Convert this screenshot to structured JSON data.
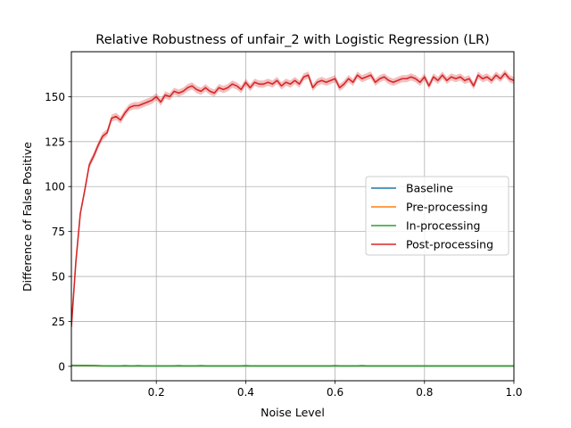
{
  "chart_data": {
    "type": "line",
    "title": "Relative Robustness of unfair_2 with Logistic Regression (LR)",
    "xlabel": "Noise Level",
    "ylabel": "Difference of False Positive",
    "xlim": [
      0.01,
      1.0
    ],
    "ylim": [
      -8,
      175
    ],
    "xticks": [
      0.2,
      0.4,
      0.6,
      0.8,
      1.0
    ],
    "xtick_labels": [
      "0.2",
      "0.4",
      "0.6",
      "0.8",
      "1.0"
    ],
    "yticks": [
      0,
      25,
      50,
      75,
      100,
      125,
      150
    ],
    "ytick_labels": [
      "0",
      "25",
      "50",
      "75",
      "100",
      "125",
      "150"
    ],
    "grid": true,
    "legend_position": "center-right",
    "x": [
      0.01,
      0.02,
      0.03,
      0.04,
      0.05,
      0.06,
      0.07,
      0.08,
      0.09,
      0.1,
      0.11,
      0.12,
      0.13,
      0.14,
      0.15,
      0.16,
      0.17,
      0.18,
      0.19,
      0.2,
      0.21,
      0.22,
      0.23,
      0.24,
      0.25,
      0.26,
      0.27,
      0.28,
      0.29,
      0.3,
      0.31,
      0.32,
      0.33,
      0.34,
      0.35,
      0.36,
      0.37,
      0.38,
      0.39,
      0.4,
      0.41,
      0.42,
      0.43,
      0.44,
      0.45,
      0.46,
      0.47,
      0.48,
      0.49,
      0.5,
      0.51,
      0.52,
      0.53,
      0.54,
      0.55,
      0.56,
      0.57,
      0.58,
      0.59,
      0.6,
      0.61,
      0.62,
      0.63,
      0.64,
      0.65,
      0.66,
      0.67,
      0.68,
      0.69,
      0.7,
      0.71,
      0.72,
      0.73,
      0.74,
      0.75,
      0.76,
      0.77,
      0.78,
      0.79,
      0.8,
      0.81,
      0.82,
      0.83,
      0.84,
      0.85,
      0.86,
      0.87,
      0.88,
      0.89,
      0.9,
      0.91,
      0.92,
      0.93,
      0.94,
      0.95,
      0.96,
      0.97,
      0.98,
      0.99,
      1.0
    ],
    "series": [
      {
        "name": "Baseline",
        "color": "#1f77b4",
        "values": [
          0.5,
          0.5,
          0.5,
          0.4,
          0.4,
          0.4,
          0.3,
          0.3,
          0.3,
          0.2,
          0.2,
          0.2,
          0.2,
          0.2,
          0.2,
          0.2,
          0.2,
          0.2,
          0.2,
          0.2,
          0.2,
          0.2,
          0.2,
          0.2,
          0.2,
          0.2,
          0.2,
          0.2,
          0.2,
          0.2,
          0.2,
          0.2,
          0.2,
          0.2,
          0.2,
          0.2,
          0.2,
          0.2,
          0.2,
          0.2,
          0.2,
          0.2,
          0.2,
          0.2,
          0.2,
          0.2,
          0.2,
          0.2,
          0.2,
          0.2,
          0.2,
          0.2,
          0.2,
          0.2,
          0.2,
          0.2,
          0.2,
          0.2,
          0.2,
          0.2,
          0.2,
          0.2,
          0.2,
          0.2,
          0.2,
          0.2,
          0.2,
          0.2,
          0.2,
          0.2,
          0.2,
          0.2,
          0.2,
          0.2,
          0.2,
          0.2,
          0.2,
          0.2,
          0.2,
          0.2,
          0.2,
          0.2,
          0.2,
          0.2,
          0.2,
          0.2,
          0.2,
          0.2,
          0.2,
          0.2,
          0.2,
          0.2,
          0.2,
          0.2,
          0.2,
          0.2,
          0.2,
          0.2,
          0.2,
          0.2
        ]
      },
      {
        "name": "Pre-processing",
        "color": "#ff7f0e",
        "values": [
          0.5,
          0.5,
          0.5,
          0.4,
          0.4,
          0.4,
          0.3,
          0.3,
          0.3,
          0.3,
          0.3,
          0.3,
          0.3,
          0.3,
          0.3,
          0.3,
          0.3,
          0.3,
          0.3,
          0.3,
          0.3,
          0.3,
          0.3,
          0.3,
          0.3,
          0.3,
          0.3,
          0.3,
          0.3,
          0.3,
          0.3,
          0.3,
          0.3,
          0.3,
          0.3,
          0.3,
          0.3,
          0.3,
          0.3,
          0.3,
          0.3,
          0.3,
          0.3,
          0.3,
          0.3,
          0.3,
          0.3,
          0.3,
          0.3,
          0.3,
          0.3,
          0.3,
          0.3,
          0.3,
          0.3,
          0.3,
          0.3,
          0.3,
          0.3,
          0.3,
          0.3,
          0.3,
          0.3,
          0.3,
          0.3,
          0.3,
          0.3,
          0.3,
          0.3,
          0.3,
          0.3,
          0.3,
          0.3,
          0.3,
          0.3,
          0.3,
          0.3,
          0.3,
          0.3,
          0.3,
          0.3,
          0.3,
          0.3,
          0.3,
          0.3,
          0.3,
          0.3,
          0.3,
          0.3,
          0.3,
          0.3,
          0.3,
          0.3,
          0.3,
          0.3,
          0.3,
          0.3,
          0.3,
          0.3,
          0.3
        ]
      },
      {
        "name": "In-processing",
        "color": "#2ca02c",
        "values": [
          0.6,
          0.5,
          0.5,
          0.5,
          0.4,
          0.4,
          0.4,
          0.3,
          0.3,
          0.3,
          0.3,
          0.3,
          0.4,
          0.3,
          0.3,
          0.4,
          0.3,
          0.3,
          0.3,
          0.3,
          0.3,
          0.3,
          0.3,
          0.3,
          0.4,
          0.3,
          0.3,
          0.3,
          0.3,
          0.4,
          0.3,
          0.3,
          0.3,
          0.3,
          0.3,
          0.3,
          0.3,
          0.3,
          0.3,
          0.4,
          0.3,
          0.3,
          0.3,
          0.3,
          0.3,
          0.3,
          0.3,
          0.3,
          0.3,
          0.3,
          0.3,
          0.3,
          0.3,
          0.3,
          0.3,
          0.3,
          0.3,
          0.3,
          0.3,
          0.4,
          0.3,
          0.3,
          0.3,
          0.3,
          0.3,
          0.4,
          0.3,
          0.3,
          0.3,
          0.3,
          0.3,
          0.3,
          0.3,
          0.3,
          0.3,
          0.3,
          0.3,
          0.3,
          0.3,
          0.3,
          0.3,
          0.3,
          0.3,
          0.3,
          0.3,
          0.3,
          0.3,
          0.3,
          0.3,
          0.3,
          0.3,
          0.3,
          0.3,
          0.3,
          0.3,
          0.3,
          0.3,
          0.3,
          0.3,
          0.3
        ]
      },
      {
        "name": "Post-processing",
        "color": "#d62728",
        "band": 2.0,
        "values": [
          22,
          58,
          85,
          98,
          112,
          117,
          123,
          128,
          130,
          138,
          139,
          137,
          141,
          144,
          145,
          145,
          146,
          147,
          148,
          150,
          147,
          151,
          150,
          153,
          152,
          153,
          155,
          156,
          154,
          153,
          155,
          153,
          152,
          155,
          154,
          155,
          157,
          156,
          154,
          158,
          155,
          158,
          157,
          157,
          158,
          157,
          159,
          156,
          158,
          157,
          159,
          157,
          161,
          162,
          155,
          158,
          159,
          158,
          159,
          160,
          155,
          157,
          160,
          158,
          162,
          160,
          161,
          162,
          158,
          160,
          161,
          159,
          158,
          159,
          160,
          160,
          161,
          160,
          158,
          161,
          156,
          161,
          159,
          162,
          159,
          161,
          160,
          161,
          159,
          160,
          156,
          162,
          160,
          161,
          159,
          162,
          160,
          163,
          160,
          159
        ]
      }
    ]
  }
}
